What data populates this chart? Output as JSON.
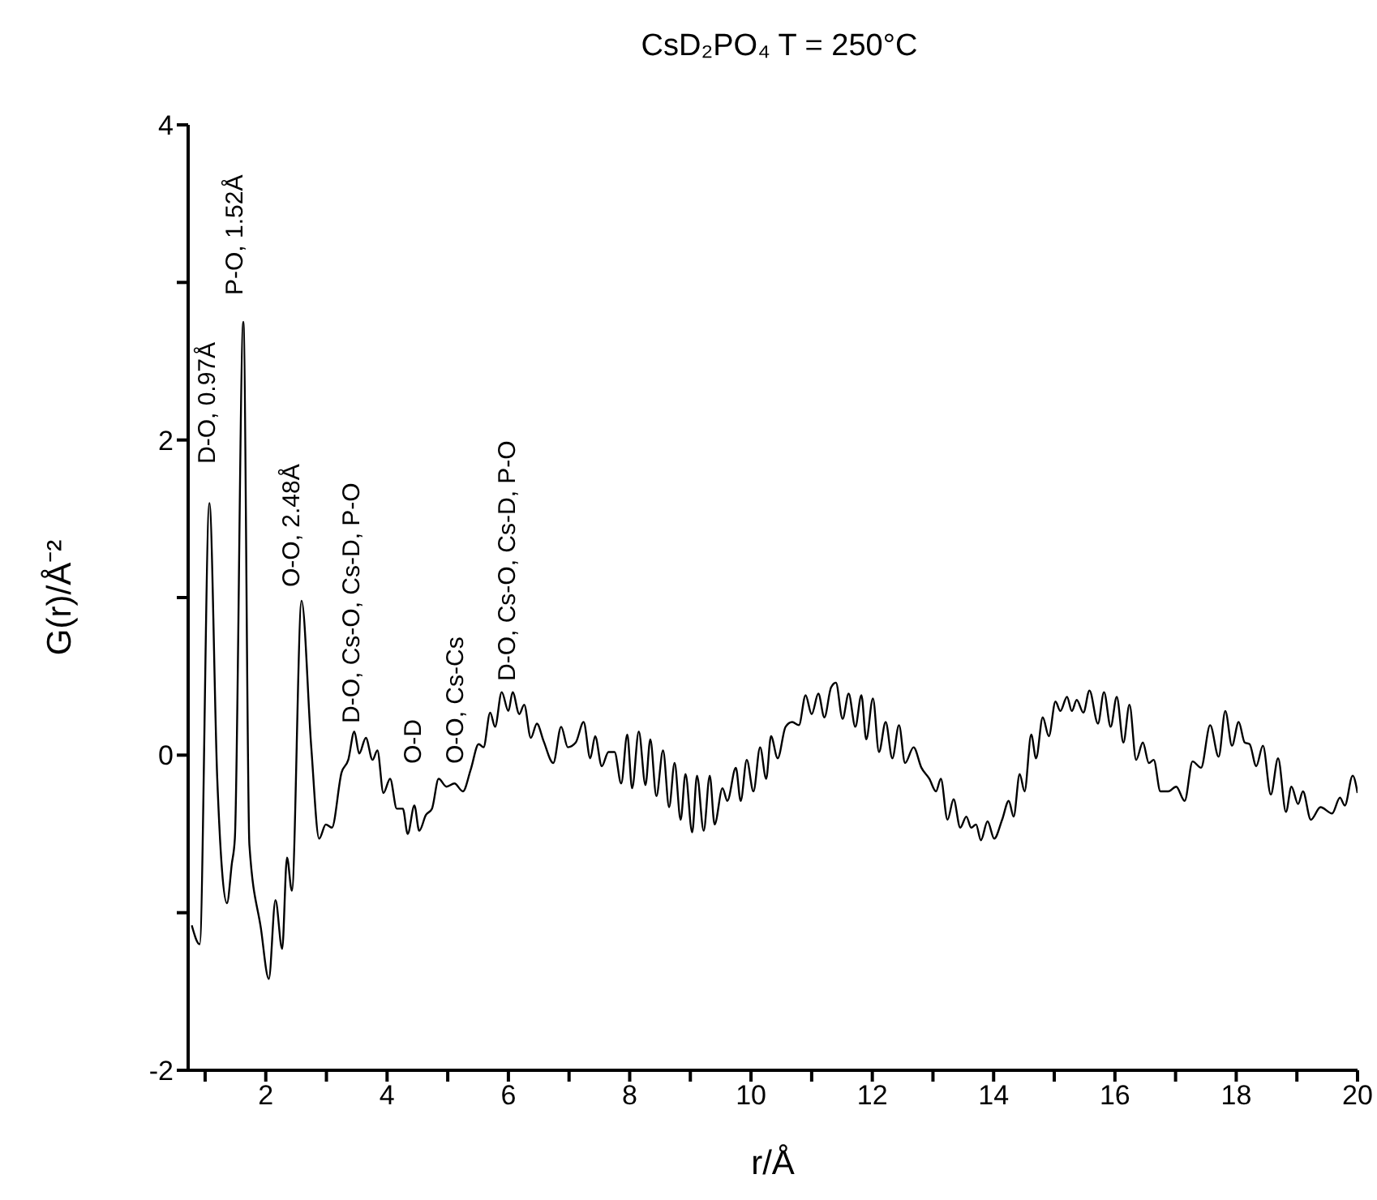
{
  "chart_data": {
    "type": "line",
    "title": "CsD₂PO₄ T = 250°C",
    "xlabel": "r/Å",
    "ylabel": "G(r)/Å⁻²",
    "xlim": [
      0.72,
      20
    ],
    "ylim": [
      -2,
      4
    ],
    "xticks": [
      {
        "value": 1,
        "label": null
      },
      2,
      {
        "value": 3,
        "label": null
      },
      4,
      {
        "value": 5,
        "label": null
      },
      6,
      {
        "value": 7,
        "label": null
      },
      8,
      {
        "value": 9,
        "label": null
      },
      10,
      {
        "value": 11,
        "label": null
      },
      12,
      {
        "value": 13,
        "label": null
      },
      14,
      {
        "value": 15,
        "label": null
      },
      16,
      {
        "value": 17,
        "label": null
      },
      18,
      {
        "value": 19,
        "label": null
      },
      20
    ],
    "yticks": [
      -2,
      {
        "value": -1,
        "label": null
      },
      0,
      {
        "value": 1,
        "label": null
      },
      2,
      {
        "value": 3,
        "label": null
      },
      4
    ],
    "grid": false,
    "legend": false,
    "marker": "none",
    "line_style": "solid",
    "series": [
      {
        "color": "#000000",
        "x": [
          0.78,
          0.91,
          1.07,
          1.2,
          1.36,
          1.44,
          1.49,
          1.63,
          1.73,
          1.92,
          2.05,
          2.16,
          2.27,
          2.35,
          2.43,
          2.59,
          2.75,
          2.88,
          2.99,
          3.09,
          3.25,
          3.36,
          3.46,
          3.54,
          3.65,
          3.76,
          3.84,
          3.94,
          4.05,
          4.16,
          4.26,
          4.34,
          4.45,
          4.53,
          4.64,
          4.74,
          4.85,
          4.98,
          5.11,
          5.25,
          5.38,
          5.51,
          5.59,
          5.7,
          5.78,
          5.89,
          6.0,
          6.07,
          6.18,
          6.26,
          6.37,
          6.47,
          6.58,
          6.74,
          6.87,
          6.98,
          7.11,
          7.24,
          7.35,
          7.43,
          7.54,
          7.65,
          7.75,
          7.86,
          7.96,
          8.04,
          8.15,
          8.26,
          8.34,
          8.44,
          8.55,
          8.65,
          8.74,
          8.84,
          8.92,
          9.03,
          9.11,
          9.22,
          9.32,
          9.4,
          9.53,
          9.61,
          9.75,
          9.83,
          9.93,
          10.04,
          10.15,
          10.25,
          10.33,
          10.44,
          10.57,
          10.68,
          10.79,
          10.9,
          11.0,
          11.11,
          11.21,
          11.32,
          11.4,
          11.51,
          11.61,
          11.72,
          11.82,
          11.9,
          12.01,
          12.11,
          12.22,
          12.33,
          12.44,
          12.54,
          12.68,
          12.81,
          12.94,
          13.05,
          13.13,
          13.24,
          13.34,
          13.45,
          13.55,
          13.63,
          13.71,
          13.79,
          13.9,
          14.01,
          14.14,
          14.25,
          14.33,
          14.43,
          14.51,
          14.62,
          14.7,
          14.81,
          14.91,
          15.02,
          15.1,
          15.21,
          15.29,
          15.37,
          15.48,
          15.58,
          15.72,
          15.82,
          15.93,
          16.03,
          16.14,
          16.24,
          16.35,
          16.46,
          16.56,
          16.64,
          16.75,
          16.88,
          17.01,
          17.15,
          17.28,
          17.42,
          17.57,
          17.71,
          17.82,
          17.93,
          18.04,
          18.14,
          18.22,
          18.33,
          18.44,
          18.57,
          18.69,
          18.82,
          18.91,
          19.02,
          19.1,
          19.23,
          19.39,
          19.58,
          19.71,
          19.79,
          19.92,
          20.0
        ],
        "values": [
          -1.08,
          -1.2,
          1.6,
          -0.15,
          -0.94,
          -0.69,
          -0.53,
          2.75,
          -0.57,
          -1.1,
          -1.42,
          -0.92,
          -1.23,
          -0.65,
          -0.86,
          0.98,
          0.05,
          -0.53,
          -0.44,
          -0.46,
          -0.11,
          -0.03,
          0.15,
          0.01,
          0.11,
          -0.03,
          0.03,
          -0.24,
          -0.15,
          -0.34,
          -0.34,
          -0.5,
          -0.32,
          -0.48,
          -0.38,
          -0.34,
          -0.15,
          -0.2,
          -0.18,
          -0.23,
          -0.09,
          0.07,
          0.05,
          0.27,
          0.18,
          0.4,
          0.28,
          0.4,
          0.26,
          0.32,
          0.11,
          0.2,
          0.09,
          -0.05,
          0.18,
          0.05,
          0.08,
          0.21,
          -0.02,
          0.12,
          -0.07,
          0.02,
          0.02,
          -0.18,
          0.13,
          -0.21,
          0.15,
          -0.19,
          0.1,
          -0.26,
          0.03,
          -0.33,
          -0.05,
          -0.41,
          -0.12,
          -0.49,
          -0.13,
          -0.48,
          -0.13,
          -0.44,
          -0.21,
          -0.29,
          -0.08,
          -0.29,
          -0.03,
          -0.23,
          0.05,
          -0.15,
          0.12,
          -0.02,
          0.18,
          0.21,
          0.19,
          0.38,
          0.26,
          0.39,
          0.24,
          0.43,
          0.46,
          0.23,
          0.39,
          0.18,
          0.38,
          0.1,
          0.36,
          0.02,
          0.21,
          -0.02,
          0.19,
          -0.05,
          0.05,
          -0.08,
          -0.15,
          -0.23,
          -0.15,
          -0.41,
          -0.28,
          -0.46,
          -0.39,
          -0.46,
          -0.44,
          -0.54,
          -0.42,
          -0.53,
          -0.41,
          -0.29,
          -0.39,
          -0.12,
          -0.23,
          0.13,
          -0.02,
          0.24,
          0.12,
          0.34,
          0.28,
          0.37,
          0.28,
          0.35,
          0.27,
          0.41,
          0.2,
          0.4,
          0.18,
          0.37,
          0.08,
          0.32,
          -0.03,
          0.08,
          -0.05,
          -0.03,
          -0.23,
          -0.23,
          -0.2,
          -0.29,
          -0.04,
          -0.08,
          0.19,
          -0.01,
          0.28,
          0.06,
          0.21,
          0.08,
          0.07,
          -0.07,
          0.06,
          -0.25,
          -0.02,
          -0.36,
          -0.2,
          -0.31,
          -0.23,
          -0.41,
          -0.33,
          -0.37,
          -0.27,
          -0.32,
          -0.13,
          -0.24
        ]
      }
    ],
    "annotations": [
      "D-O, 0.97Å",
      "P-O, 1.52Å",
      "O-O, 2.48Å",
      "D-O, Cs-O, Cs-D, P-O",
      "O-D",
      "O-O, Cs-Cs",
      "D-O, Cs-O, Cs-D, P-O"
    ]
  }
}
